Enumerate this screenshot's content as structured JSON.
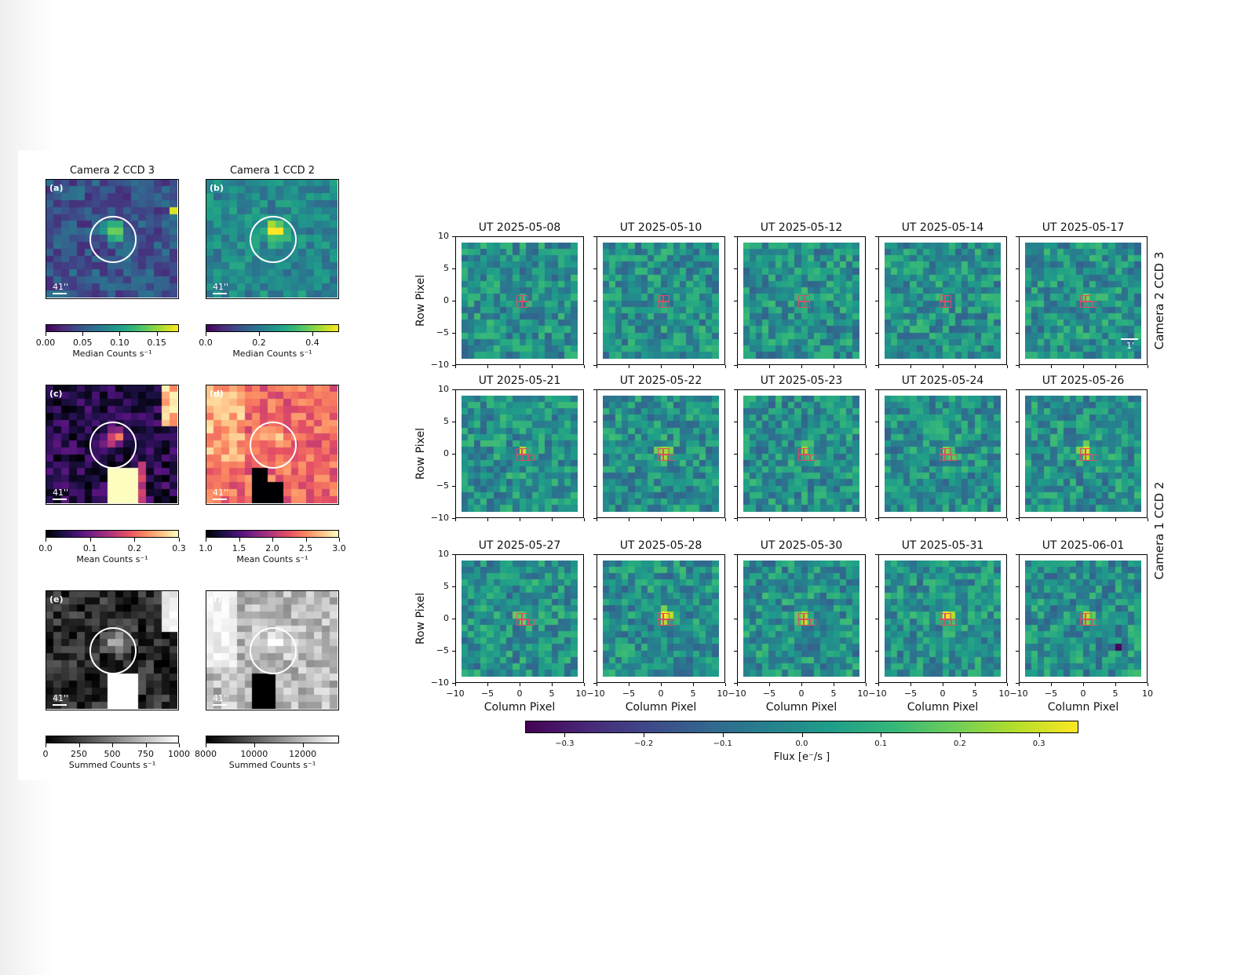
{
  "left_figure": {
    "columns": [
      "Camera 2 CCD 3",
      "Camera 1 CCD 2"
    ],
    "scale_label": "41''",
    "rows": [
      {
        "panels": [
          {
            "label": "(a)",
            "cmap": "viridis"
          },
          {
            "label": "(b)",
            "cmap": "viridis"
          }
        ],
        "colorbars": [
          {
            "label": "Median Counts s⁻¹",
            "ticks": [
              "0.00",
              "0.05",
              "0.10",
              "0.15"
            ],
            "tick_values": [
              0.0,
              0.05,
              0.1,
              0.15
            ],
            "range": [
              0.0,
              0.18
            ],
            "cmap": "viridis"
          },
          {
            "label": "Median Counts s⁻¹",
            "ticks": [
              "0.0",
              "0.2",
              "0.4"
            ],
            "tick_values": [
              0.0,
              0.2,
              0.4
            ],
            "range": [
              0.0,
              0.5
            ],
            "cmap": "viridis"
          }
        ]
      },
      {
        "panels": [
          {
            "label": "(c)",
            "cmap": "magma"
          },
          {
            "label": "(d)",
            "cmap": "magma"
          }
        ],
        "colorbars": [
          {
            "label": "Mean Counts s⁻¹",
            "ticks": [
              "0.0",
              "0.1",
              "0.2",
              "0.3"
            ],
            "tick_values": [
              0.0,
              0.1,
              0.2,
              0.3
            ],
            "range": [
              0.0,
              0.3
            ],
            "cmap": "magma"
          },
          {
            "label": "Mean Counts s⁻¹",
            "ticks": [
              "1.0",
              "1.5",
              "2.0",
              "2.5",
              "3.0"
            ],
            "tick_values": [
              1.0,
              1.5,
              2.0,
              2.5,
              3.0
            ],
            "range": [
              1.0,
              3.0
            ],
            "cmap": "magma"
          }
        ]
      },
      {
        "panels": [
          {
            "label": "(e)",
            "cmap": "gray"
          },
          {
            "label": "(f)",
            "cmap": "gray"
          }
        ],
        "colorbars": [
          {
            "label": "Summed Counts s⁻¹",
            "ticks": [
              "0",
              "250",
              "500",
              "750",
              "1000"
            ],
            "tick_values": [
              0,
              250,
              500,
              750,
              1000
            ],
            "range": [
              0,
              1000
            ],
            "cmap": "gray"
          },
          {
            "label": "Summed Counts s⁻¹",
            "ticks": [
              "8000",
              "10000",
              "12000"
            ],
            "tick_values": [
              8000,
              10000,
              12000
            ],
            "range": [
              8000,
              13500
            ],
            "cmap": "gray"
          }
        ]
      }
    ]
  },
  "right_figure": {
    "row_axis_label": "Row Pixel",
    "col_axis_label": "Column Pixel",
    "axis_ticks": [
      "−10",
      "−5",
      "0",
      "5",
      "10"
    ],
    "axis_tick_values": [
      -10,
      -5,
      0,
      5,
      10
    ],
    "bottom_tick_labels": [
      "−10",
      "−5",
      "0",
      "5",
      "10−10",
      "−5",
      "0",
      "5",
      "10−10",
      "−5",
      "0",
      "5",
      "10−10",
      "−5",
      "0",
      "5",
      "10−10",
      "−5",
      "0",
      "5",
      "10"
    ],
    "scale_label": "1'",
    "side_labels": [
      "Camera 2 CCD 3",
      "Camera 1 CCD 2"
    ],
    "dates": [
      [
        "UT 2025-05-08",
        "UT 2025-05-10",
        "UT 2025-05-12",
        "UT 2025-05-14",
        "UT 2025-05-17"
      ],
      [
        "UT 2025-05-21",
        "UT 2025-05-22",
        "UT 2025-05-23",
        "UT 2025-05-24",
        "UT 2025-05-26"
      ],
      [
        "UT 2025-05-27",
        "UT 2025-05-28",
        "UT 2025-05-30",
        "UT 2025-05-31",
        "UT 2025-06-01"
      ]
    ],
    "colorbar": {
      "label": "Flux [e⁻/s ]",
      "ticks": [
        "−0.3",
        "−0.2",
        "−0.1",
        "0.0",
        "0.1",
        "0.2",
        "0.3"
      ],
      "tick_values": [
        -0.3,
        -0.2,
        -0.1,
        0.0,
        0.1,
        0.2,
        0.3
      ],
      "range": [
        -0.35,
        0.35
      ],
      "cmap": "viridis"
    }
  },
  "chart_data": {
    "type": "heatmap",
    "description_of_grid": "TESS pixel cutouts, 21x21 pixels centred at 0,0 (Column Pixel x Row Pixel)",
    "xlabel": "Column Pixel",
    "ylabel": "Row Pixel",
    "xlim": [
      -10,
      10
    ],
    "ylim": [
      -10,
      10
    ],
    "colorbar_range": [
      -0.35,
      0.35
    ]
  }
}
